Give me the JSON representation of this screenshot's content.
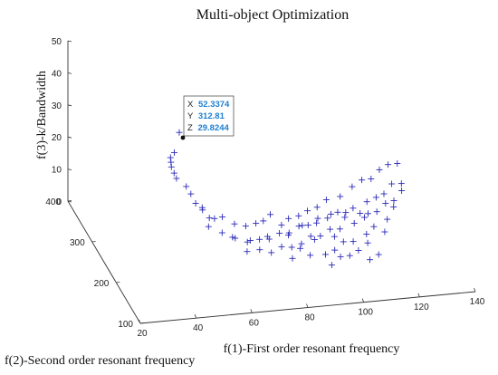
{
  "chart_data": {
    "type": "scatter",
    "title": "Multi-object Optimization",
    "xlabel": "f(1)-First order resonant frequency",
    "ylabel": "f(2)-Second order resonant frequency",
    "zlabel": "f(3)-k/Bandwidth",
    "xlim": [
      20,
      140
    ],
    "ylim": [
      100,
      400
    ],
    "zlim": [
      0,
      50
    ],
    "x_ticks": [
      "20",
      "40",
      "60",
      "80",
      "100",
      "120",
      "140"
    ],
    "y_ticks": [
      "100",
      "200",
      "300",
      "400"
    ],
    "z_ticks": [
      "0",
      "10",
      "20",
      "30",
      "40",
      "50"
    ],
    "grid": false,
    "marker": "+",
    "marker_color": "#2a2ab8",
    "datatip": {
      "x_key": "X",
      "x_value": "52.3374",
      "y_key": "Y",
      "y_value": "312.81",
      "z_key": "Z",
      "z_value": "29.8244"
    },
    "series": [
      {
        "points": [
          [
            52.3374,
            312.81,
            29.8244
          ],
          [
            51,
            318,
            23
          ],
          [
            50,
            322,
            21
          ],
          [
            50.5,
            326,
            19
          ],
          [
            51,
            330,
            17
          ],
          [
            52,
            330,
            15
          ],
          [
            53,
            332,
            13
          ],
          [
            56,
            326,
            11
          ],
          [
            58,
            330,
            8
          ],
          [
            59,
            322,
            6
          ],
          [
            61,
            318,
            5
          ],
          [
            60,
            305,
            6
          ],
          [
            62,
            300,
            4
          ],
          [
            66,
            292,
            5
          ],
          [
            70,
            288,
            3
          ],
          [
            74,
            288,
            2
          ],
          [
            78,
            292,
            2
          ],
          [
            81,
            296,
            2
          ],
          [
            84,
            302,
            3
          ],
          [
            87,
            290,
            1
          ],
          [
            90,
            296,
            2
          ],
          [
            94,
            300,
            2
          ],
          [
            98,
            310,
            2
          ],
          [
            102,
            316,
            2
          ],
          [
            106,
            324,
            3
          ],
          [
            112,
            336,
            2
          ],
          [
            118,
            356,
            2
          ],
          [
            122,
            362,
            3
          ],
          [
            126,
            370,
            2
          ],
          [
            130,
            382,
            3
          ],
          [
            134,
            392,
            3
          ],
          [
            138,
            400,
            2
          ],
          [
            64,
            270,
            3
          ],
          [
            68,
            262,
            2
          ],
          [
            72,
            258,
            1
          ],
          [
            76,
            254,
            2
          ],
          [
            80,
            260,
            1
          ],
          [
            84,
            264,
            2
          ],
          [
            88,
            270,
            1
          ],
          [
            92,
            276,
            2
          ],
          [
            96,
            284,
            1
          ],
          [
            100,
            290,
            2
          ],
          [
            104,
            296,
            1
          ],
          [
            108,
            300,
            2
          ],
          [
            110,
            294,
            1
          ],
          [
            114,
            306,
            2
          ],
          [
            116,
            300,
            1
          ],
          [
            120,
            318,
            2
          ],
          [
            124,
            326,
            2
          ],
          [
            128,
            340,
            1
          ],
          [
            132,
            354,
            2
          ],
          [
            70,
            236,
            1
          ],
          [
            74,
            230,
            2
          ],
          [
            78,
            228,
            1
          ],
          [
            82,
            232,
            2
          ],
          [
            86,
            236,
            1
          ],
          [
            90,
            242,
            1
          ],
          [
            94,
            250,
            2
          ],
          [
            98,
            256,
            1
          ],
          [
            102,
            262,
            2
          ],
          [
            106,
            268,
            1
          ],
          [
            112,
            278,
            1
          ],
          [
            118,
            290,
            2
          ],
          [
            122,
            300,
            1
          ],
          [
            126,
            310,
            2
          ],
          [
            84,
            210,
            1
          ],
          [
            90,
            206,
            2
          ],
          [
            96,
            212,
            1
          ],
          [
            100,
            220,
            1
          ],
          [
            104,
            230,
            2
          ],
          [
            108,
            236,
            1
          ],
          [
            114,
            250,
            1
          ],
          [
            96,
            186,
            1
          ],
          [
            100,
            196,
            2
          ],
          [
            104,
            204,
            1
          ],
          [
            108,
            214,
            1
          ],
          [
            112,
            222,
            2
          ],
          [
            110,
            190,
            1
          ],
          [
            114,
            200,
            1
          ],
          [
            66,
            250,
            4
          ],
          [
            72,
            246,
            3
          ],
          [
            78,
            244,
            4
          ],
          [
            86,
            250,
            3
          ],
          [
            92,
            262,
            4
          ],
          [
            98,
            272,
            3
          ],
          [
            104,
            282,
            4
          ],
          [
            110,
            290,
            3
          ],
          [
            116,
            282,
            2
          ],
          [
            118,
            266,
            1
          ],
          [
            120,
            244,
            2
          ],
          [
            124,
            280,
            1
          ],
          [
            128,
            300,
            2
          ],
          [
            130,
            322,
            1
          ],
          [
            134,
            336,
            2
          ],
          [
            136,
            360,
            1
          ],
          [
            88,
            224,
            2
          ],
          [
            94,
            234,
            3
          ],
          [
            102,
            244,
            2
          ],
          [
            60,
            280,
            4
          ],
          [
            63,
            290,
            5
          ]
        ]
      }
    ]
  }
}
